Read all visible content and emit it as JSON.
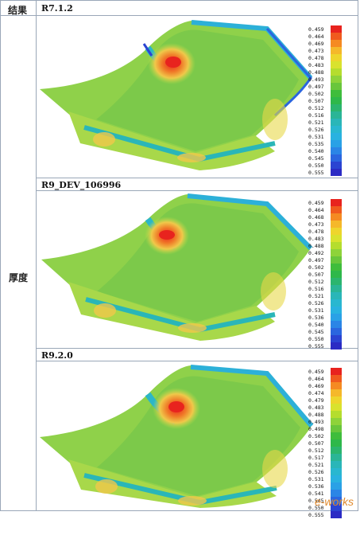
{
  "header_label": "结果",
  "side_label": "厚度",
  "panels": [
    {
      "version": "R7.1.2"
    },
    {
      "version": "R9_DEV_106996"
    },
    {
      "version": "R9.2.0"
    }
  ],
  "legends": [
    [
      "0.459",
      "0.464",
      "0.469",
      "0.473",
      "0.478",
      "0.483",
      "0.488",
      "0.493",
      "0.497",
      "0.502",
      "0.507",
      "0.512",
      "0.516",
      "0.521",
      "0.526",
      "0.531",
      "0.535",
      "0.540",
      "0.545",
      "0.550",
      "0.555"
    ],
    [
      "0.459",
      "0.464",
      "0.468",
      "0.473",
      "0.478",
      "0.483",
      "0.488",
      "0.492",
      "0.497",
      "0.502",
      "0.507",
      "0.512",
      "0.516",
      "0.521",
      "0.526",
      "0.531",
      "0.536",
      "0.540",
      "0.545",
      "0.550",
      "0.555"
    ],
    [
      "0.459",
      "0.464",
      "0.469",
      "0.474",
      "0.479",
      "0.483",
      "0.488",
      "0.493",
      "0.498",
      "0.502",
      "0.507",
      "0.512",
      "0.517",
      "0.521",
      "0.526",
      "0.531",
      "0.536",
      "0.541",
      "0.545",
      "0.550",
      "0.555"
    ]
  ],
  "legend_colors": [
    "#e8231e",
    "#f05a1e",
    "#f58a22",
    "#f5b82a",
    "#eed52c",
    "#d9e22e",
    "#b5dd2e",
    "#8ed33a",
    "#69c63c",
    "#3fbd3c",
    "#2eb84a",
    "#2bb56e",
    "#2ab596",
    "#2ab6b8",
    "#29b7d0",
    "#29b2e0",
    "#2aa1e6",
    "#2b85e6",
    "#2b66df",
    "#2b44d2",
    "#2b2bc4"
  ],
  "watermark": "e-works"
}
